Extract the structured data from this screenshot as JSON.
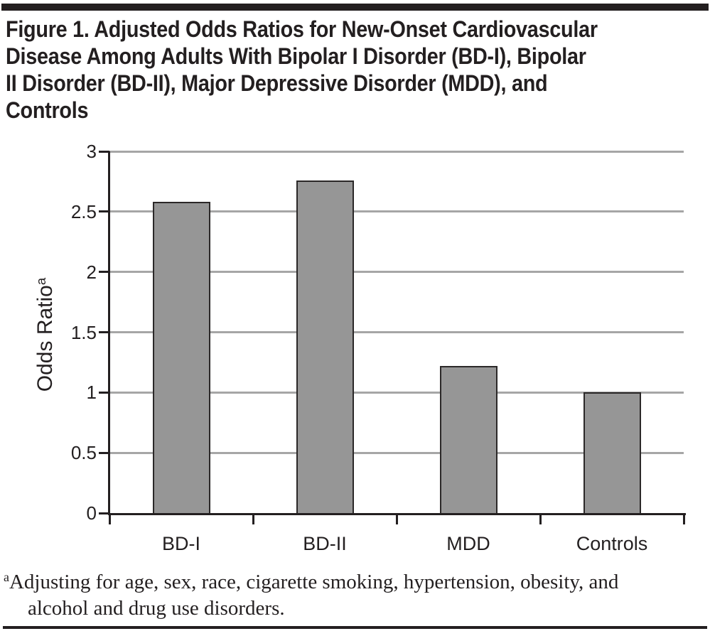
{
  "figure": {
    "title_lines": [
      "Figure 1. Adjusted Odds Ratios for New-Onset Cardiovascular",
      "Disease Among Adults With Bipolar I Disorder (BD-I), Bipolar",
      "II Disorder (BD-II), Major Depressive Disorder (MDD), and",
      "Controls"
    ],
    "footnote": {
      "marker": "a",
      "line1": "Adjusting for age, sex, race, cigarette smoking, hypertension, obesity, and",
      "line2": "alcohol and drug use disorders."
    }
  },
  "chart_data": {
    "type": "bar",
    "title": "Figure 1. Adjusted Odds Ratios for New-Onset Cardiovascular Disease Among Adults With Bipolar I Disorder (BD-I), Bipolar II Disorder (BD-II), Major Depressive Disorder (MDD), and Controls",
    "categories": [
      "BD-I",
      "BD-II",
      "MDD",
      "Controls"
    ],
    "values": [
      2.58,
      2.76,
      1.22,
      1.0
    ],
    "xlabel": "",
    "ylabel": "Odds Ratio",
    "ylabel_superscript": "a",
    "ylim": [
      0,
      3
    ],
    "yticks": [
      0,
      0.5,
      1,
      1.5,
      2,
      2.5,
      3
    ],
    "ytick_labels": [
      "0",
      "0.5",
      "1",
      "1.5",
      "2",
      "2.5",
      "3"
    ],
    "grid": true,
    "legend_position": "none",
    "bar_fill": "#969696",
    "bar_stroke": "#2b2828",
    "gridline_color": "#a6a6a6",
    "axis_color": "#231f20",
    "text_color": "#231f20"
  }
}
